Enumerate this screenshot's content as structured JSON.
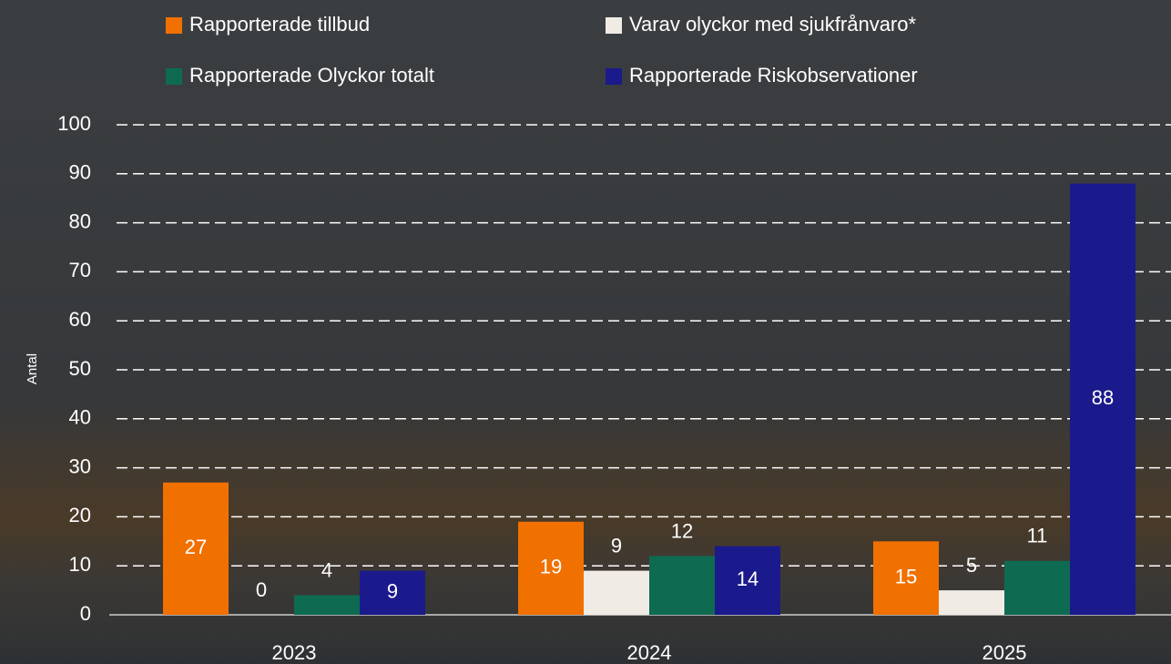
{
  "chart_data": {
    "type": "bar",
    "y_label": "Antal",
    "categories": [
      "2023",
      "2024",
      "2025"
    ],
    "series": [
      {
        "name": "Rapporterade tillbud",
        "color": "#f07000",
        "values": [
          27,
          19,
          15
        ]
      },
      {
        "name": "Varav olyckor med sjukfrånvaro*",
        "color": "#f0ebe4",
        "values": [
          0,
          9,
          5
        ]
      },
      {
        "name": "Rapporterade Olyckor totalt",
        "color": "#0e6b52",
        "values": [
          4,
          12,
          11
        ]
      },
      {
        "name": "Rapporterade Riskobservationer",
        "color": "#1a1a8c",
        "values": [
          9,
          14,
          88
        ]
      }
    ],
    "ylim": [
      0,
      100
    ],
    "yticks": [
      0,
      10,
      20,
      30,
      40,
      50,
      60,
      70,
      80,
      90,
      100
    ],
    "grid": true
  }
}
